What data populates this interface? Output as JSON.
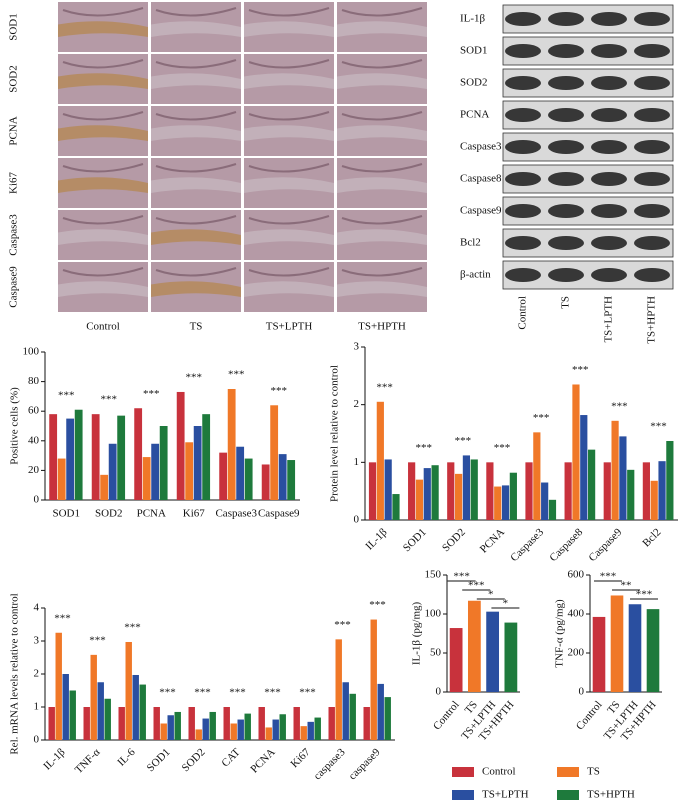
{
  "ihc": {
    "rows": [
      "SOD1",
      "SOD2",
      "PCNA",
      "Ki67",
      "Caspase3",
      "Caspase9"
    ],
    "columns": [
      "Control",
      "TS",
      "TS+LPTH",
      "TS+HPTH"
    ]
  },
  "blot": {
    "rows": [
      "IL-1β",
      "SOD1",
      "SOD2",
      "PCNA",
      "Caspase3",
      "Caspase8",
      "Caspase9",
      "Bcl2",
      "β-actin"
    ],
    "columns": [
      "Control",
      "TS",
      "TS+LPTH",
      "TS+HPTH"
    ]
  },
  "chart_data": [
    {
      "type": "bar",
      "y_label": "Positive cells (%)",
      "categories": [
        "SOD1",
        "SOD2",
        "PCNA",
        "Ki67",
        "Caspase3",
        "Caspase9"
      ],
      "series": [
        {
          "name": "Control",
          "color": "#c8323c",
          "values": [
            58,
            58,
            62,
            73,
            32,
            24
          ]
        },
        {
          "name": "TS",
          "color": "#f07828",
          "values": [
            28,
            17,
            29,
            39,
            75,
            64
          ]
        },
        {
          "name": "TS+LPTH",
          "color": "#2a4fa0",
          "values": [
            55,
            38,
            38,
            50,
            36,
            31
          ]
        },
        {
          "name": "TS+HPTH",
          "color": "#1e7a3c",
          "values": [
            61,
            57,
            50,
            58,
            28,
            27
          ]
        }
      ],
      "significance": [
        "***",
        "***",
        "***",
        "***",
        "***",
        "***"
      ],
      "ylim": [
        0,
        100
      ],
      "yticks": [
        0,
        20,
        40,
        60,
        80,
        100
      ]
    },
    {
      "type": "bar",
      "y_label": "Protein level relative to control",
      "categories": [
        "IL-1β",
        "SOD1",
        "SOD2",
        "PCNA",
        "Caspase3",
        "Caspase8",
        "Caspase9",
        "Bcl2"
      ],
      "series": [
        {
          "name": "Control",
          "color": "#c8323c",
          "values": [
            1,
            1,
            1,
            1,
            1,
            1,
            1,
            1
          ]
        },
        {
          "name": "TS",
          "color": "#f07828",
          "values": [
            2.05,
            0.7,
            0.8,
            0.58,
            1.52,
            2.35,
            1.72,
            0.68
          ]
        },
        {
          "name": "TS+LPTH",
          "color": "#2a4fa0",
          "values": [
            1.05,
            0.9,
            1.12,
            0.6,
            0.65,
            1.82,
            1.45,
            1.02
          ]
        },
        {
          "name": "TS+HPTH",
          "color": "#1e7a3c",
          "values": [
            0.45,
            0.95,
            1.05,
            0.82,
            0.35,
            1.22,
            0.87,
            1.37
          ]
        }
      ],
      "significance": [
        "***",
        "***",
        "***",
        "***",
        "***",
        "***",
        "***",
        "***"
      ],
      "ylim": [
        0,
        3
      ],
      "yticks": [
        0,
        1,
        2,
        3
      ]
    },
    {
      "type": "bar",
      "y_label": "Rel. mRNA levels relative to control",
      "categories": [
        "IL-1β",
        "TNF-α",
        "IL-6",
        "SOD1",
        "SOD2",
        "CAT",
        "PCNA",
        "Ki67",
        "caspase3",
        "caspase9"
      ],
      "series": [
        {
          "name": "Control",
          "color": "#c8323c",
          "values": [
            1,
            1,
            1,
            1,
            1,
            1,
            1,
            1,
            1,
            1
          ]
        },
        {
          "name": "TS",
          "color": "#f07828",
          "values": [
            3.25,
            2.58,
            2.97,
            0.5,
            0.32,
            0.5,
            0.38,
            0.42,
            3.05,
            3.65
          ]
        },
        {
          "name": "TS+LPTH",
          "color": "#2a4fa0",
          "values": [
            2.0,
            1.75,
            1.97,
            0.75,
            0.65,
            0.62,
            0.62,
            0.55,
            1.75,
            1.7
          ]
        },
        {
          "name": "TS+HPTH",
          "color": "#1e7a3c",
          "values": [
            1.5,
            1.25,
            1.68,
            0.85,
            0.85,
            0.8,
            0.78,
            0.68,
            1.4,
            1.3
          ]
        }
      ],
      "significance": [
        "***",
        "***",
        "***",
        "***",
        "***",
        "***",
        "***",
        "***",
        "***",
        "***"
      ],
      "ylim": [
        0,
        4
      ],
      "yticks": [
        0,
        1,
        2,
        3,
        4
      ]
    },
    {
      "type": "bar",
      "y_label": "IL-1β (pg/mg)",
      "categories": [
        "Control",
        "TS",
        "TS+LPTH",
        "TS+HPTH"
      ],
      "values": [
        82,
        117,
        103,
        89
      ],
      "colors": [
        "#c8323c",
        "#f07828",
        "#2a4fa0",
        "#1e7a3c"
      ],
      "significance": [
        "***",
        "***",
        "*",
        "*"
      ],
      "ylim": [
        0,
        150
      ],
      "yticks": [
        0,
        50,
        100,
        150
      ]
    },
    {
      "type": "bar",
      "y_label": "TNF-α (pg/mg)",
      "categories": [
        "Control",
        "TS",
        "TS+LPTH",
        "TS+HPTH"
      ],
      "values": [
        385,
        495,
        450,
        425
      ],
      "colors": [
        "#c8323c",
        "#f07828",
        "#2a4fa0",
        "#1e7a3c"
      ],
      "significance": [
        "***",
        "**",
        "***"
      ],
      "ylim": [
        0,
        600
      ],
      "yticks": [
        0,
        200,
        400,
        600
      ]
    }
  ]
}
